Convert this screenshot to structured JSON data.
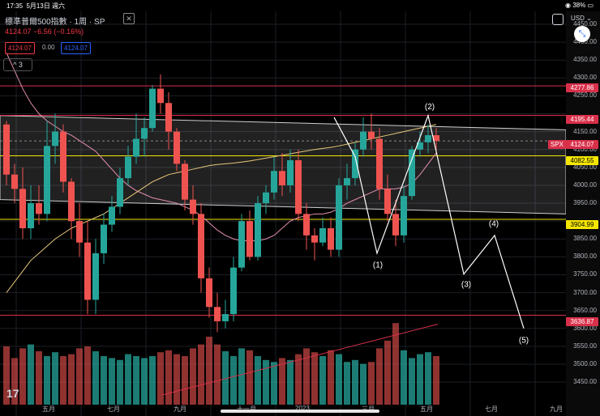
{
  "status_bar": {
    "time": "17:35",
    "date": "5月13日 週六",
    "battery": "38%"
  },
  "header": {
    "title": "標準普爾500指數 · 1周 · SP",
    "ohlc": "4124.07 −6.56 (−0.16%)",
    "price_left": "4124.07",
    "spread": "0.00",
    "price_right": "4124.07",
    "indicator_badge": "3",
    "currency": "USD"
  },
  "price_axis": {
    "ticks": [
      "4450.00",
      "4400.00",
      "4350.00",
      "4300.00",
      "4250.00",
      "4150.00",
      "4100.00",
      "4050.00",
      "4000.00",
      "3950.00",
      "3850.00",
      "3800.00",
      "3750.00",
      "3700.00",
      "3650.00",
      "3600.00",
      "3550.00",
      "3500.00",
      "3450.00"
    ],
    "labels": {
      "l4277": "4277.86",
      "l4195": "4195.44",
      "spx_tag": "SPX",
      "spx": "4124.07",
      "l4082": "4082.55",
      "l3904": "3904.99",
      "l3636": "3636.87"
    }
  },
  "time_axis": [
    "五月",
    "七月",
    "九月",
    "十一月",
    "2023",
    "三月",
    "五月",
    "七月",
    "九月"
  ],
  "waves": {
    "w1": "(1)",
    "w2": "(2)",
    "w3": "(3)",
    "w4": "(4)",
    "w5": "(5)"
  },
  "colors": {
    "up": "#26a69a",
    "down": "#ef5350",
    "white": "#ffffff",
    "yellow": "#f5e600",
    "red_line": "#d9304a",
    "bg": "#000000"
  },
  "chart_data": {
    "type": "candlestick",
    "title": "標準普爾500指數 · 1周 · SP",
    "ylim": [
      3420,
      4470
    ],
    "weeks": 54,
    "candles": [
      [
        4170,
        4180,
        4000,
        4030
      ],
      [
        4030,
        4060,
        3950,
        3990
      ],
      [
        3990,
        4050,
        3850,
        3880
      ],
      [
        3880,
        4000,
        3850,
        3950
      ],
      [
        3950,
        4000,
        3890,
        3920
      ],
      [
        3920,
        4180,
        3900,
        4110
      ],
      [
        4110,
        4200,
        4060,
        4150
      ],
      [
        4150,
        4170,
        3980,
        4010
      ],
      [
        4010,
        4020,
        3850,
        3900
      ],
      [
        3900,
        3950,
        3800,
        3840
      ],
      [
        3840,
        3900,
        3640,
        3680
      ],
      [
        3680,
        3850,
        3640,
        3810
      ],
      [
        3810,
        3920,
        3780,
        3890
      ],
      [
        3890,
        3970,
        3870,
        3940
      ],
      [
        3940,
        4050,
        3920,
        4020
      ],
      [
        4020,
        4110,
        4000,
        4080
      ],
      [
        4080,
        4200,
        4060,
        4130
      ],
      [
        4130,
        4190,
        4080,
        4160
      ],
      [
        4160,
        4280,
        4150,
        4270
      ],
      [
        4270,
        4310,
        4200,
        4230
      ],
      [
        4230,
        4260,
        4100,
        4150
      ],
      [
        4150,
        4160,
        4040,
        4060
      ],
      [
        4060,
        4070,
        3930,
        3960
      ],
      [
        3960,
        4000,
        3890,
        3920
      ],
      [
        3920,
        3950,
        3700,
        3740
      ],
      [
        3740,
        3770,
        3630,
        3660
      ],
      [
        3660,
        3700,
        3590,
        3620
      ],
      [
        3620,
        3680,
        3600,
        3640
      ],
      [
        3640,
        3800,
        3620,
        3770
      ],
      [
        3770,
        3920,
        3760,
        3900
      ],
      [
        3900,
        3930,
        3790,
        3800
      ],
      [
        3800,
        3970,
        3790,
        3950
      ],
      [
        3950,
        4000,
        3920,
        3980
      ],
      [
        3980,
        4080,
        3960,
        4040
      ],
      [
        4040,
        4090,
        3970,
        4000
      ],
      [
        4000,
        4100,
        3980,
        4070
      ],
      [
        4070,
        4100,
        3900,
        3920
      ],
      [
        3920,
        3950,
        3820,
        3860
      ],
      [
        3860,
        3880,
        3790,
        3840
      ],
      [
        3840,
        3910,
        3830,
        3880
      ],
      [
        3880,
        3910,
        3800,
        3820
      ],
      [
        3820,
        4020,
        3800,
        4000
      ],
      [
        4000,
        4060,
        3960,
        4020
      ],
      [
        4020,
        4120,
        4000,
        4100
      ],
      [
        4100,
        4190,
        4080,
        4150
      ],
      [
        4150,
        4200,
        4100,
        4130
      ],
      [
        4130,
        4160,
        3960,
        3990
      ],
      [
        3990,
        4030,
        3900,
        3920
      ],
      [
        3920,
        3960,
        3830,
        3860
      ],
      [
        3860,
        4000,
        3840,
        3970
      ],
      [
        3970,
        4110,
        3960,
        4100
      ],
      [
        4100,
        4150,
        4080,
        4120
      ],
      [
        4120,
        4170,
        4090,
        4140
      ],
      [
        4140,
        4160,
        4090,
        4124.07
      ]
    ],
    "volumes": [
      60,
      48,
      58,
      62,
      55,
      50,
      54,
      50,
      52,
      58,
      60,
      55,
      50,
      48,
      46,
      52,
      50,
      48,
      50,
      54,
      56,
      52,
      50,
      58,
      62,
      70,
      62,
      55,
      50,
      58,
      56,
      50,
      46,
      44,
      48,
      46,
      52,
      58,
      54,
      50,
      56,
      52,
      44,
      46,
      42,
      44,
      58,
      66,
      84,
      56,
      48,
      52,
      54,
      50
    ],
    "moving_averages": [
      {
        "name": "MA 20 (pink)",
        "values": [
          4370,
          4320,
          4270,
          4230,
          4200,
          4180,
          4165,
          4150,
          4140,
          4125,
          4110,
          4095,
          4070,
          4045,
          4020,
          4000,
          3985,
          3975,
          3965,
          3960,
          3955,
          3950,
          3940,
          3930,
          3915,
          3895,
          3875,
          3860,
          3850,
          3845,
          3845,
          3845,
          3850,
          3860,
          3880,
          3900,
          3910,
          3915,
          3920,
          3920,
          3925,
          3935,
          3950,
          3960,
          3970,
          3980,
          3990,
          3990,
          3990,
          3995,
          4005,
          4030,
          4060,
          4090
        ]
      },
      {
        "name": "MA 50 (yellow)",
        "values": [
          3700,
          3730,
          3760,
          3790,
          3810,
          3830,
          3850,
          3865,
          3880,
          3890,
          3900,
          3910,
          3920,
          3935,
          3950,
          3965,
          3980,
          3995,
          4010,
          4020,
          4030,
          4035,
          4040,
          4045,
          4050,
          4055,
          4058,
          4060,
          4062,
          4065,
          4068,
          4072,
          4076,
          4080,
          4084,
          4088,
          4092,
          4096,
          4100,
          4103,
          4106,
          4110,
          4115,
          4120,
          4125,
          4130,
          4135,
          4140,
          4145,
          4150,
          4155,
          4160,
          4165,
          4170
        ]
      }
    ],
    "levels": [
      4277.86,
      4195.44,
      4124.07,
      4082.55,
      3904.99,
      3636.87
    ],
    "projection": {
      "labels": [
        "(1)",
        "(2)",
        "(3)",
        "(4)",
        "(5)"
      ],
      "values": [
        3810,
        4190,
        3750,
        3860,
        3600
      ]
    }
  }
}
